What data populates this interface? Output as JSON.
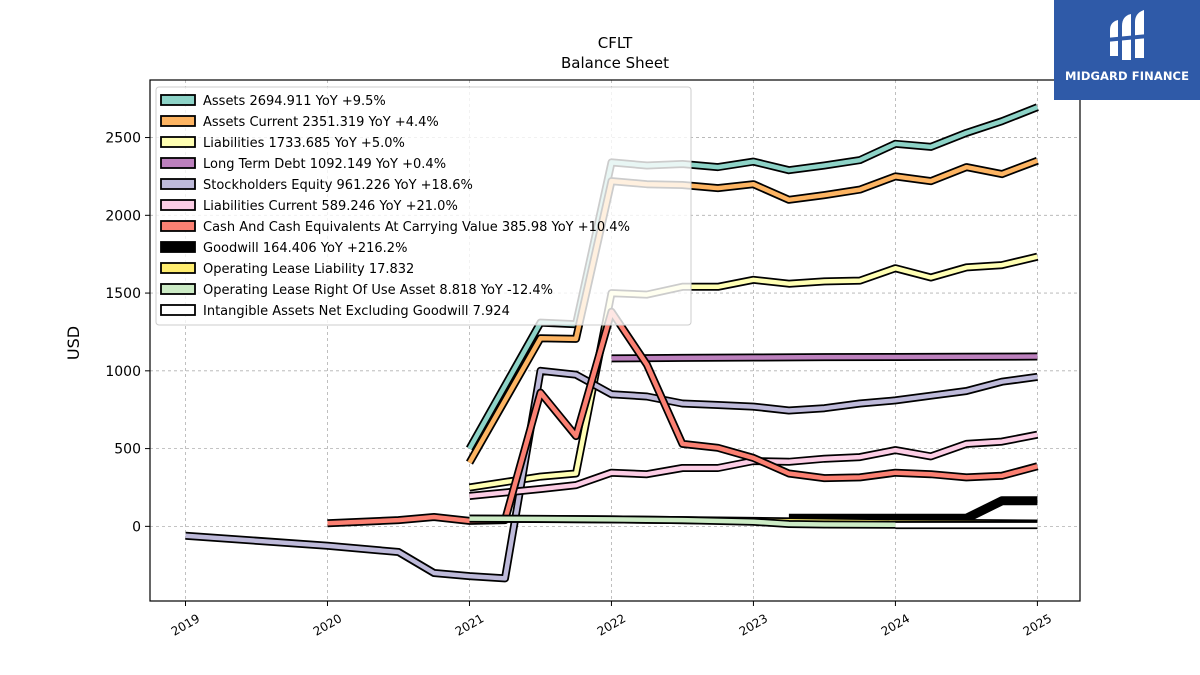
{
  "brand": {
    "name": "MIDGARD FINANCE",
    "bg_color": "#2f5aa8",
    "icon": "midgard-logo-icon"
  },
  "chart_data": {
    "type": "line",
    "title": "CFLT",
    "subtitle": "Balance  Sheet",
    "xlabel": "",
    "ylabel": "USD",
    "xlim": [
      2018.75,
      2025.3
    ],
    "ylim": [
      -480,
      2870
    ],
    "x_ticks": [
      2019,
      2020,
      2021,
      2022,
      2023,
      2024,
      2025
    ],
    "x_tick_labels": [
      "2019",
      "2020",
      "2021",
      "2022",
      "2023",
      "2024",
      "2025"
    ],
    "y_ticks": [
      0,
      500,
      1000,
      1500,
      2000,
      2500
    ],
    "y_tick_labels": [
      "0",
      "500",
      "1000",
      "1500",
      "2000",
      "2500"
    ],
    "grid": true,
    "legend_position": "top-left",
    "series": [
      {
        "name": "Assets",
        "legend_label": "Assets  2694.911 YoY +9.5%",
        "color": "#8dd3c7",
        "points": [
          [
            2021.0,
            500
          ],
          [
            2021.5,
            1310
          ],
          [
            2021.75,
            1300
          ],
          [
            2022.0,
            2340
          ],
          [
            2022.25,
            2320
          ],
          [
            2022.5,
            2330
          ],
          [
            2022.75,
            2310
          ],
          [
            2023.0,
            2345
          ],
          [
            2023.25,
            2290
          ],
          [
            2023.5,
            2320
          ],
          [
            2023.75,
            2355
          ],
          [
            2024.0,
            2460
          ],
          [
            2024.25,
            2440
          ],
          [
            2024.5,
            2530
          ],
          [
            2024.75,
            2605
          ],
          [
            2025.0,
            2695
          ]
        ]
      },
      {
        "name": "Assets Current",
        "legend_label": "Assets Current  2351.319 YoY +4.4%",
        "color": "#fdb462",
        "points": [
          [
            2021.0,
            410
          ],
          [
            2021.5,
            1210
          ],
          [
            2021.75,
            1205
          ],
          [
            2022.0,
            2220
          ],
          [
            2022.25,
            2200
          ],
          [
            2022.5,
            2195
          ],
          [
            2022.75,
            2175
          ],
          [
            2023.0,
            2200
          ],
          [
            2023.25,
            2100
          ],
          [
            2023.5,
            2130
          ],
          [
            2023.75,
            2165
          ],
          [
            2024.0,
            2250
          ],
          [
            2024.25,
            2220
          ],
          [
            2024.5,
            2310
          ],
          [
            2024.75,
            2265
          ],
          [
            2025.0,
            2351
          ]
        ]
      },
      {
        "name": "Liabilities",
        "legend_label": "Liabilities  1733.685 YoY +5.0%",
        "color": "#ffffb3",
        "points": [
          [
            2021.0,
            250
          ],
          [
            2021.5,
            320
          ],
          [
            2021.75,
            340
          ],
          [
            2022.0,
            1500
          ],
          [
            2022.25,
            1490
          ],
          [
            2022.5,
            1540
          ],
          [
            2022.75,
            1540
          ],
          [
            2023.0,
            1585
          ],
          [
            2023.25,
            1560
          ],
          [
            2023.5,
            1575
          ],
          [
            2023.75,
            1580
          ],
          [
            2024.0,
            1660
          ],
          [
            2024.25,
            1600
          ],
          [
            2024.5,
            1665
          ],
          [
            2024.75,
            1680
          ],
          [
            2025.0,
            1734
          ]
        ]
      },
      {
        "name": "Long Term Debt",
        "legend_label": "Long Term Debt  1092.149 YoY +0.4%",
        "color": "#bc80bd",
        "points": [
          [
            2022.0,
            1080
          ],
          [
            2022.5,
            1083
          ],
          [
            2023.0,
            1086
          ],
          [
            2023.5,
            1088
          ],
          [
            2024.0,
            1089
          ],
          [
            2024.5,
            1090
          ],
          [
            2025.0,
            1092
          ]
        ]
      },
      {
        "name": "Stockholders Equity",
        "legend_label": "Stockholders Equity  961.226 YoY +18.6%",
        "color": "#bebada",
        "points": [
          [
            2019.0,
            -60
          ],
          [
            2020.0,
            -125
          ],
          [
            2020.5,
            -165
          ],
          [
            2020.75,
            -300
          ],
          [
            2021.0,
            -320
          ],
          [
            2021.25,
            -335
          ],
          [
            2021.5,
            1000
          ],
          [
            2021.75,
            975
          ],
          [
            2022.0,
            850
          ],
          [
            2022.25,
            835
          ],
          [
            2022.5,
            790
          ],
          [
            2022.75,
            780
          ],
          [
            2023.0,
            770
          ],
          [
            2023.25,
            745
          ],
          [
            2023.5,
            760
          ],
          [
            2023.75,
            790
          ],
          [
            2024.0,
            810
          ],
          [
            2024.25,
            840
          ],
          [
            2024.5,
            870
          ],
          [
            2024.75,
            930
          ],
          [
            2025.0,
            961
          ]
        ]
      },
      {
        "name": "Liabilities Current",
        "legend_label": "Liabilities Current  589.246 YoY +21.0%",
        "color": "#fccde5",
        "points": [
          [
            2021.0,
            195
          ],
          [
            2021.5,
            240
          ],
          [
            2021.75,
            265
          ],
          [
            2022.0,
            345
          ],
          [
            2022.25,
            335
          ],
          [
            2022.5,
            375
          ],
          [
            2022.75,
            375
          ],
          [
            2023.0,
            420
          ],
          [
            2023.25,
            415
          ],
          [
            2023.5,
            435
          ],
          [
            2023.75,
            445
          ],
          [
            2024.0,
            490
          ],
          [
            2024.25,
            450
          ],
          [
            2024.5,
            530
          ],
          [
            2024.75,
            545
          ],
          [
            2025.0,
            589
          ]
        ]
      },
      {
        "name": "Cash And Cash Equivalents At Carrying Value",
        "legend_label": "Cash And Cash Equivalents At Carrying Value  385.98 YoY +10.4%",
        "color": "#fb8072",
        "points": [
          [
            2020.0,
            20
          ],
          [
            2020.5,
            40
          ],
          [
            2020.75,
            60
          ],
          [
            2021.0,
            35
          ],
          [
            2021.25,
            40
          ],
          [
            2021.5,
            860
          ],
          [
            2021.75,
            580
          ],
          [
            2022.0,
            1380
          ],
          [
            2022.25,
            1040
          ],
          [
            2022.5,
            530
          ],
          [
            2022.75,
            505
          ],
          [
            2023.0,
            440
          ],
          [
            2023.25,
            340
          ],
          [
            2023.5,
            310
          ],
          [
            2023.75,
            315
          ],
          [
            2024.0,
            345
          ],
          [
            2024.25,
            335
          ],
          [
            2024.5,
            315
          ],
          [
            2024.75,
            325
          ],
          [
            2025.0,
            386
          ]
        ]
      },
      {
        "name": "Goodwill",
        "legend_label": "Goodwill  164.406 YoY +216.2%",
        "color": "#000000",
        "points": [
          [
            2023.25,
            52
          ],
          [
            2023.5,
            52
          ],
          [
            2023.75,
            52
          ],
          [
            2024.0,
            52
          ],
          [
            2024.25,
            52
          ],
          [
            2024.5,
            52
          ],
          [
            2024.75,
            164
          ],
          [
            2025.0,
            164
          ]
        ]
      },
      {
        "name": "Operating Lease Liability",
        "legend_label": "Operating Lease Liability  17.832",
        "color": "#ffed6f",
        "points": [
          [
            2021.0,
            50
          ],
          [
            2022.0,
            45
          ],
          [
            2023.0,
            35
          ],
          [
            2024.0,
            25
          ],
          [
            2025.0,
            18
          ]
        ]
      },
      {
        "name": "Operating Lease Right Of Use Asset",
        "legend_label": "Operating Lease Right Of Use Asset  8.818 YoY -12.4%",
        "color": "#ccebc5",
        "points": [
          [
            2021.0,
            50
          ],
          [
            2021.5,
            48
          ],
          [
            2022.0,
            45
          ],
          [
            2022.5,
            40
          ],
          [
            2023.0,
            30
          ],
          [
            2023.25,
            15
          ],
          [
            2023.5,
            12
          ],
          [
            2024.0,
            10
          ],
          [
            2024.5,
            9
          ],
          [
            2025.0,
            9
          ]
        ]
      },
      {
        "name": "Intangible Assets Net Excluding Goodwill",
        "legend_label": "Intangible Assets Net Excluding Goodwill  7.924",
        "color": "#ffffff",
        "points": [
          [
            2024.0,
            8
          ],
          [
            2024.5,
            8
          ],
          [
            2025.0,
            8
          ]
        ]
      }
    ]
  }
}
